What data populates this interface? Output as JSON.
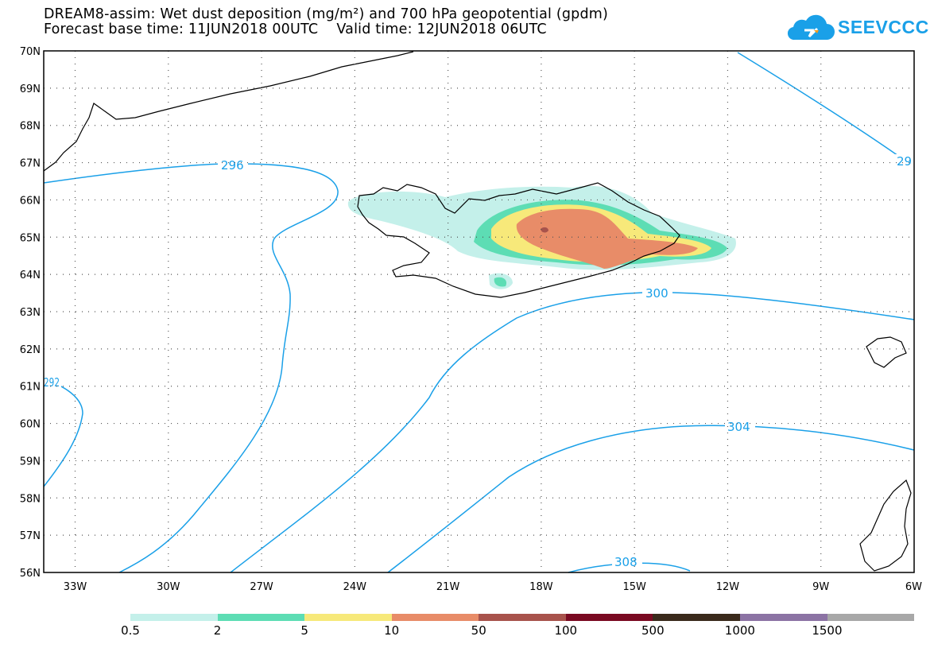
{
  "title": {
    "line1": "DREAM8-assim: Wet dust deposition (mg/m²) and 700 hPa geopotential (gpdm)",
    "line2": "Forecast base time: 11JUN2018 00UTC    Valid time: 12JUN2018 06UTC"
  },
  "logo": {
    "text": "SEEVCCC",
    "icon": "cloud-icon",
    "color": "#1aa0e8"
  },
  "map": {
    "lat_labels": [
      "70N",
      "69N",
      "68N",
      "67N",
      "66N",
      "65N",
      "64N",
      "63N",
      "62N",
      "61N",
      "60N",
      "59N",
      "58N",
      "57N",
      "56N"
    ],
    "lon_labels": [
      "33W",
      "30W",
      "27W",
      "24W",
      "21W",
      "18W",
      "15W",
      "12W",
      "9W",
      "6W"
    ],
    "contour_labels": [
      "296",
      "300",
      "304",
      "308",
      "292",
      "29"
    ],
    "contour_color": "#1aa0e8"
  },
  "colorbar": {
    "colors": [
      "#c4f0ea",
      "#5dddb4",
      "#f7e97a",
      "#e88c68",
      "#a8534c",
      "#7a0a22",
      "#3a2a1c",
      "#8c73a4",
      "#a8a8a8"
    ],
    "labels": [
      "0.5",
      "2",
      "5",
      "10",
      "50",
      "100",
      "500",
      "1000",
      "1500"
    ]
  }
}
